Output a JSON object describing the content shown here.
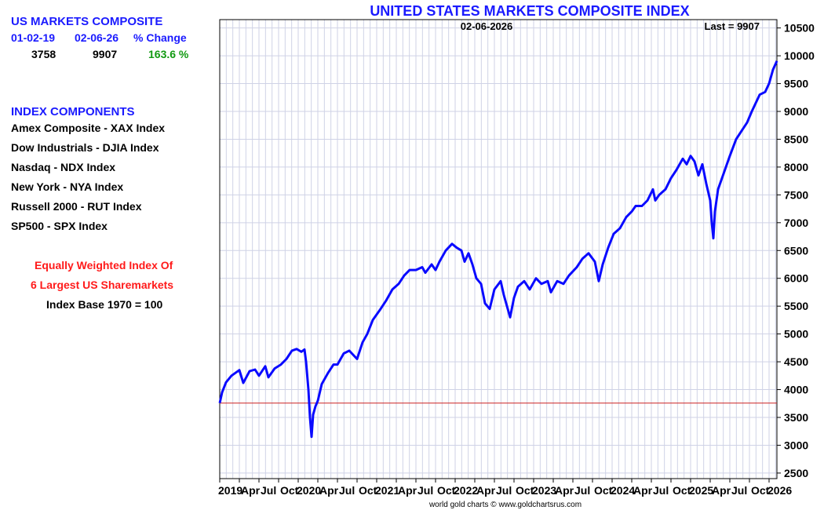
{
  "left_panel": {
    "summary_title": "US MARKETS COMPOSITE",
    "start_date": "01-02-19",
    "end_date": "02-06-26",
    "change_header": "% Change",
    "start_value": "3758",
    "end_value": "9907",
    "change_value": "163.6 %",
    "components_title": "INDEX COMPONENTS",
    "components": [
      "Amex Composite - XAX Index",
      "Dow Industrials - DJIA Index",
      "Nasdaq - NDX Index",
      "New York - NYA Index",
      "Russell 2000 - RUT Index",
      "SP500 - SPX Index"
    ],
    "note_line1": "Equally Weighted Index Of",
    "note_line2": "6 Largest US Sharemarkets",
    "note_line3": "Index Base 1970 = 100"
  },
  "colors": {
    "title_blue": "#1a1aff",
    "line_blue": "#0a0aff",
    "note_red": "#ff1a1a",
    "change_green": "#129a12",
    "ref_line": "#cc2222",
    "grid": "#cfd2e6"
  },
  "chart_data": {
    "type": "line",
    "title": "UNITED STATES MARKETS COMPOSITE INDEX",
    "date_label": "02-06-2026",
    "last_label": "Last = 9907",
    "credit": "world gold charts © www.goldchartsrus.com",
    "ylim": [
      2400,
      10650
    ],
    "yticks": [
      2500,
      3000,
      3500,
      4000,
      4500,
      5000,
      5500,
      6000,
      6500,
      7000,
      7500,
      8000,
      8500,
      9000,
      9500,
      10000,
      10500
    ],
    "y_axis_side": "right",
    "xlim": [
      2019.0,
      2026.1
    ],
    "x_labels": [
      {
        "x": 2019.0,
        "label": "2019",
        "year": true
      },
      {
        "x": 2019.25,
        "label": "Apr"
      },
      {
        "x": 2019.5,
        "label": "Jul"
      },
      {
        "x": 2019.75,
        "label": "Oct"
      },
      {
        "x": 2020.0,
        "label": "2020",
        "year": true
      },
      {
        "x": 2020.25,
        "label": "Apr"
      },
      {
        "x": 2020.5,
        "label": "Jul"
      },
      {
        "x": 2020.75,
        "label": "Oct"
      },
      {
        "x": 2021.0,
        "label": "2021",
        "year": true
      },
      {
        "x": 2021.25,
        "label": "Apr"
      },
      {
        "x": 2021.5,
        "label": "Jul"
      },
      {
        "x": 2021.75,
        "label": "Oct"
      },
      {
        "x": 2022.0,
        "label": "2022",
        "year": true
      },
      {
        "x": 2022.25,
        "label": "Apr"
      },
      {
        "x": 2022.5,
        "label": "Jul"
      },
      {
        "x": 2022.75,
        "label": "Oct"
      },
      {
        "x": 2023.0,
        "label": "2023",
        "year": true
      },
      {
        "x": 2023.25,
        "label": "Apr"
      },
      {
        "x": 2023.5,
        "label": "Jul"
      },
      {
        "x": 2023.75,
        "label": "Oct"
      },
      {
        "x": 2024.0,
        "label": "2024",
        "year": true
      },
      {
        "x": 2024.25,
        "label": "Apr"
      },
      {
        "x": 2024.5,
        "label": "Jul"
      },
      {
        "x": 2024.75,
        "label": "Oct"
      },
      {
        "x": 2025.0,
        "label": "2025",
        "year": true
      },
      {
        "x": 2025.25,
        "label": "Apr"
      },
      {
        "x": 2025.5,
        "label": "Jul"
      },
      {
        "x": 2025.75,
        "label": "Oct"
      },
      {
        "x": 2026.0,
        "label": "2026",
        "year": true
      }
    ],
    "reference_line": 3758,
    "grid": true,
    "series": [
      {
        "x": [
          2019.0,
          2019.03,
          2019.08,
          2019.15,
          2019.25,
          2019.3,
          2019.38,
          2019.45,
          2019.5,
          2019.58,
          2019.62,
          2019.7,
          2019.78,
          2019.85,
          2019.92,
          2019.98,
          2020.04,
          2020.08,
          2020.1,
          2020.13,
          2020.15,
          2020.17,
          2020.19,
          2020.22,
          2020.25,
          2020.3,
          2020.38,
          2020.45,
          2020.5,
          2020.58,
          2020.65,
          2020.75,
          2020.82,
          2020.88,
          2020.95,
          2021.05,
          2021.12,
          2021.2,
          2021.28,
          2021.35,
          2021.42,
          2021.5,
          2021.58,
          2021.62,
          2021.7,
          2021.75,
          2021.8,
          2021.88,
          2021.96,
          2022.02,
          2022.08,
          2022.12,
          2022.17,
          2022.22,
          2022.27,
          2022.33,
          2022.38,
          2022.44,
          2022.5,
          2022.58,
          2022.62,
          2022.7,
          2022.75,
          2022.8,
          2022.88,
          2022.95,
          2023.03,
          2023.1,
          2023.18,
          2023.22,
          2023.3,
          2023.38,
          2023.45,
          2023.55,
          2023.62,
          2023.7,
          2023.78,
          2023.83,
          2023.88,
          2023.95,
          2024.02,
          2024.1,
          2024.18,
          2024.25,
          2024.3,
          2024.38,
          2024.45,
          2024.52,
          2024.55,
          2024.6,
          2024.68,
          2024.75,
          2024.82,
          2024.9,
          2024.95,
          2025.0,
          2025.05,
          2025.1,
          2025.15,
          2025.2,
          2025.25,
          2025.27,
          2025.29,
          2025.31,
          2025.35,
          2025.4,
          2025.45,
          2025.5,
          2025.58,
          2025.65,
          2025.72,
          2025.78,
          2025.83,
          2025.88,
          2025.95,
          2026.0,
          2026.05,
          2026.1
        ],
        "values": [
          3758,
          3950,
          4130,
          4250,
          4350,
          4120,
          4330,
          4360,
          4250,
          4420,
          4220,
          4380,
          4450,
          4550,
          4700,
          4730,
          4680,
          4720,
          4500,
          4000,
          3500,
          3150,
          3550,
          3700,
          3800,
          4100,
          4300,
          4450,
          4450,
          4650,
          4700,
          4550,
          4850,
          5000,
          5250,
          5450,
          5600,
          5800,
          5900,
          6050,
          6150,
          6150,
          6200,
          6100,
          6250,
          6150,
          6300,
          6500,
          6620,
          6550,
          6500,
          6300,
          6450,
          6250,
          6000,
          5900,
          5550,
          5450,
          5800,
          5950,
          5700,
          5300,
          5650,
          5850,
          5950,
          5800,
          6000,
          5900,
          5950,
          5750,
          5950,
          5900,
          6050,
          6200,
          6350,
          6450,
          6300,
          5950,
          6250,
          6550,
          6800,
          6900,
          7100,
          7200,
          7300,
          7300,
          7400,
          7600,
          7400,
          7500,
          7600,
          7800,
          7950,
          8150,
          8050,
          8200,
          8100,
          7850,
          8050,
          7700,
          7400,
          7000,
          6720,
          7200,
          7600,
          7800,
          8000,
          8200,
          8500,
          8650,
          8800,
          9000,
          9150,
          9300,
          9350,
          9500,
          9750,
          9907
        ]
      }
    ]
  }
}
